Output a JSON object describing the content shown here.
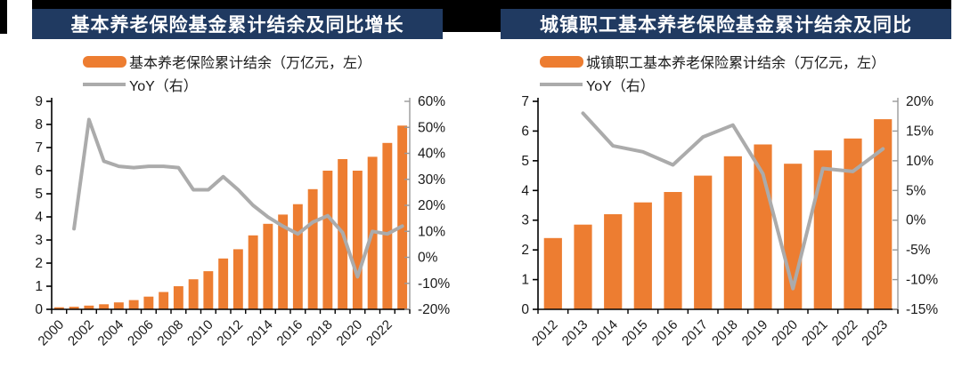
{
  "colors": {
    "bar_orange": "#ED7D31",
    "line_gray": "#ababab",
    "title_navy": "#203a61",
    "axis_black": "#000000",
    "right_axis_gray": "#999999",
    "label_color": "#1a1a1a"
  },
  "chart_data": [
    {
      "type": "bar",
      "title": "基本养老保险基金累计结余及同比增长",
      "categories": [
        "2000",
        "2001",
        "2002",
        "2003",
        "2004",
        "2005",
        "2006",
        "2007",
        "2008",
        "2009",
        "2010",
        "2011",
        "2012",
        "2013",
        "2014",
        "2015",
        "2016",
        "2017",
        "2018",
        "2019",
        "2020",
        "2021",
        "2022",
        "2023"
      ],
      "x_tick_labels": [
        "2000",
        "2002",
        "2004",
        "2006",
        "2008",
        "2010",
        "2012",
        "2014",
        "2016",
        "2018",
        "2020",
        "2022"
      ],
      "x_label_every": 2,
      "series": [
        {
          "name": "基本养老保险累计结余（万亿元，左）",
          "type": "bar",
          "axis": "left",
          "values": [
            0.09,
            0.11,
            0.16,
            0.22,
            0.3,
            0.4,
            0.55,
            0.75,
            1.0,
            1.3,
            1.65,
            2.2,
            2.6,
            3.2,
            3.7,
            4.1,
            4.55,
            5.2,
            6.0,
            6.5,
            6.0,
            6.6,
            7.2,
            7.95
          ]
        },
        {
          "name": "YoY（右）",
          "type": "line",
          "axis": "right",
          "values": [
            null,
            11,
            53,
            37,
            35,
            34.5,
            35,
            35,
            34.5,
            26,
            26,
            31,
            26,
            20,
            15.5,
            12,
            9,
            13.5,
            16,
            9.5,
            -7.5,
            10,
            9,
            12
          ]
        }
      ],
      "left_axis": {
        "min": 0,
        "max": 9,
        "labels": [
          "9",
          "8",
          "7",
          "6",
          "5",
          "4",
          "3",
          "2",
          "1",
          "0"
        ]
      },
      "right_axis": {
        "min": -20,
        "max": 60,
        "labels": [
          "60%",
          "50%",
          "40%",
          "30%",
          "20%",
          "10%",
          "0%",
          "-10%",
          "-20%"
        ]
      },
      "legend_position": "top",
      "grid": false
    },
    {
      "type": "bar",
      "title": "城镇职工基本养老保险基金累计结余及同比",
      "categories": [
        "2012",
        "2013",
        "2014",
        "2015",
        "2016",
        "2017",
        "2018",
        "2019",
        "2020",
        "2021",
        "2022",
        "2023"
      ],
      "x_tick_labels": [
        "2012",
        "2013",
        "2014",
        "2015",
        "2016",
        "2017",
        "2018",
        "2019",
        "2020",
        "2021",
        "2022",
        "2023"
      ],
      "x_label_every": 1,
      "series": [
        {
          "name": "城镇职工基本养老保险累计结余（万亿元，左）",
          "type": "bar",
          "axis": "left",
          "values": [
            2.4,
            2.85,
            3.2,
            3.6,
            3.95,
            4.5,
            5.15,
            5.55,
            4.9,
            5.35,
            5.75,
            6.4
          ]
        },
        {
          "name": "YoY（右）",
          "type": "line",
          "axis": "right",
          "values": [
            null,
            18,
            12.5,
            11.5,
            9.3,
            14,
            16,
            7.8,
            -11.5,
            8.7,
            8.2,
            12
          ]
        }
      ],
      "left_axis": {
        "min": 0,
        "max": 7,
        "labels": [
          "7",
          "6",
          "5",
          "4",
          "3",
          "2",
          "1",
          "0"
        ]
      },
      "right_axis": {
        "min": -15,
        "max": 20,
        "labels": [
          "20%",
          "15%",
          "10%",
          "5%",
          "0%",
          "-5%",
          "-10%",
          "-15%"
        ]
      },
      "legend_position": "top",
      "grid": false
    }
  ]
}
